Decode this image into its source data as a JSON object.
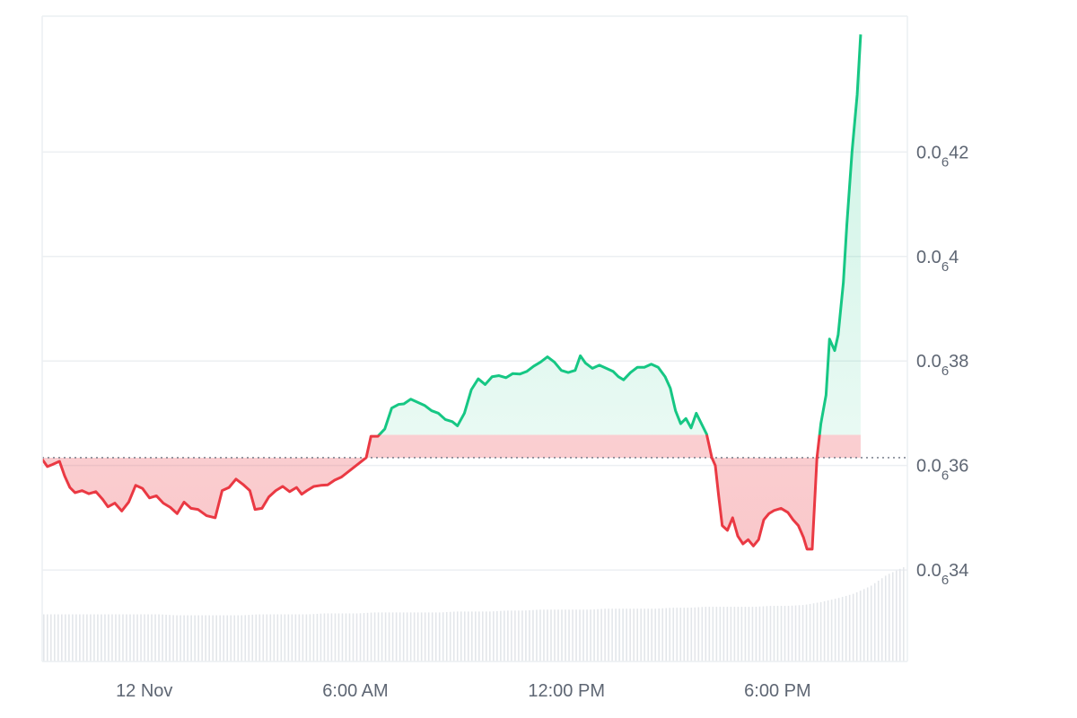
{
  "chart_data": {
    "type": "area",
    "baseline": 0.03635,
    "y_range": [
      0.03245,
      0.0448
    ],
    "y_ticks": [
      {
        "value": 0.0342,
        "prefix": "0.0",
        "sub": "6",
        "suffix": "34"
      },
      {
        "value": 0.0362,
        "prefix": "0.0",
        "sub": "6",
        "suffix": "36"
      },
      {
        "value": 0.0382,
        "prefix": "0.0",
        "sub": "6",
        "suffix": "38"
      },
      {
        "value": 0.0402,
        "prefix": "0.0",
        "sub": "6",
        "suffix": "4"
      },
      {
        "value": 0.0422,
        "prefix": "0.0",
        "sub": "6",
        "suffix": "42"
      }
    ],
    "x_ticks": [
      {
        "t": 0.118,
        "label": "12 Nov"
      },
      {
        "t": 0.362,
        "label": "6:00 AM"
      },
      {
        "t": 0.606,
        "label": "12:00 PM"
      },
      {
        "t": 0.85,
        "label": "6:00 PM"
      }
    ],
    "series": [
      {
        "points": [
          [
            0,
            0.03632
          ],
          [
            0.006,
            0.03618
          ],
          [
            0.012,
            0.03622
          ],
          [
            0.02,
            0.03628
          ],
          [
            0.026,
            0.036
          ],
          [
            0.032,
            0.03578
          ],
          [
            0.038,
            0.03568
          ],
          [
            0.046,
            0.03572
          ],
          [
            0.054,
            0.03566
          ],
          [
            0.062,
            0.0357
          ],
          [
            0.07,
            0.03555
          ],
          [
            0.076,
            0.03541
          ],
          [
            0.084,
            0.03548
          ],
          [
            0.092,
            0.03533
          ],
          [
            0.1,
            0.0355
          ],
          [
            0.108,
            0.03582
          ],
          [
            0.116,
            0.03576
          ],
          [
            0.124,
            0.03558
          ],
          [
            0.132,
            0.03562
          ],
          [
            0.14,
            0.03548
          ],
          [
            0.148,
            0.0354
          ],
          [
            0.156,
            0.03528
          ],
          [
            0.164,
            0.0355
          ],
          [
            0.172,
            0.03538
          ],
          [
            0.18,
            0.03536
          ],
          [
            0.19,
            0.03524
          ],
          [
            0.2,
            0.0352
          ],
          [
            0.208,
            0.03572
          ],
          [
            0.216,
            0.03578
          ],
          [
            0.224,
            0.03594
          ],
          [
            0.232,
            0.03584
          ],
          [
            0.24,
            0.03572
          ],
          [
            0.246,
            0.03536
          ],
          [
            0.254,
            0.03538
          ],
          [
            0.262,
            0.0356
          ],
          [
            0.27,
            0.03572
          ],
          [
            0.278,
            0.0358
          ],
          [
            0.286,
            0.0357
          ],
          [
            0.294,
            0.03578
          ],
          [
            0.3,
            0.03565
          ],
          [
            0.306,
            0.03572
          ],
          [
            0.314,
            0.0358
          ],
          [
            0.322,
            0.03582
          ],
          [
            0.33,
            0.03583
          ],
          [
            0.338,
            0.03592
          ],
          [
            0.346,
            0.03598
          ],
          [
            0.3745,
            0.03635
          ],
          [
            0.38,
            0.03676
          ],
          [
            0.388,
            0.03676
          ],
          [
            0.396,
            0.0369
          ],
          [
            0.404,
            0.0373
          ],
          [
            0.412,
            0.03737
          ],
          [
            0.418,
            0.03738
          ],
          [
            0.426,
            0.03747
          ],
          [
            0.434,
            0.03741
          ],
          [
            0.442,
            0.03735
          ],
          [
            0.45,
            0.03725
          ],
          [
            0.458,
            0.0372
          ],
          [
            0.466,
            0.03708
          ],
          [
            0.474,
            0.03704
          ],
          [
            0.48,
            0.03696
          ],
          [
            0.488,
            0.0372
          ],
          [
            0.496,
            0.03765
          ],
          [
            0.504,
            0.03786
          ],
          [
            0.512,
            0.03775
          ],
          [
            0.52,
            0.0379
          ],
          [
            0.528,
            0.03792
          ],
          [
            0.536,
            0.03788
          ],
          [
            0.544,
            0.03796
          ],
          [
            0.552,
            0.03795
          ],
          [
            0.56,
            0.038
          ],
          [
            0.568,
            0.0381
          ],
          [
            0.576,
            0.03818
          ],
          [
            0.584,
            0.03828
          ],
          [
            0.592,
            0.03818
          ],
          [
            0.6,
            0.03802
          ],
          [
            0.608,
            0.03798
          ],
          [
            0.616,
            0.03802
          ],
          [
            0.622,
            0.0383
          ],
          [
            0.628,
            0.03816
          ],
          [
            0.636,
            0.03806
          ],
          [
            0.644,
            0.03812
          ],
          [
            0.652,
            0.03806
          ],
          [
            0.66,
            0.038
          ],
          [
            0.666,
            0.0379
          ],
          [
            0.672,
            0.03784
          ],
          [
            0.68,
            0.03798
          ],
          [
            0.688,
            0.03808
          ],
          [
            0.696,
            0.03808
          ],
          [
            0.704,
            0.03814
          ],
          [
            0.712,
            0.03808
          ],
          [
            0.72,
            0.0379
          ],
          [
            0.726,
            0.03768
          ],
          [
            0.732,
            0.03725
          ],
          [
            0.738,
            0.037
          ],
          [
            0.744,
            0.0371
          ],
          [
            0.75,
            0.03692
          ],
          [
            0.756,
            0.0372
          ],
          [
            0.762,
            0.037
          ],
          [
            0.768,
            0.0368
          ],
          [
            0.774,
            0.03635
          ],
          [
            0.778,
            0.0362
          ],
          [
            0.782,
            0.0356
          ],
          [
            0.786,
            0.03505
          ],
          [
            0.792,
            0.03496
          ],
          [
            0.798,
            0.0352
          ],
          [
            0.804,
            0.03485
          ],
          [
            0.81,
            0.0347
          ],
          [
            0.816,
            0.03478
          ],
          [
            0.822,
            0.03466
          ],
          [
            0.828,
            0.03478
          ],
          [
            0.834,
            0.03516
          ],
          [
            0.84,
            0.03528
          ],
          [
            0.846,
            0.03534
          ],
          [
            0.854,
            0.03538
          ],
          [
            0.862,
            0.0353
          ],
          [
            0.868,
            0.03516
          ],
          [
            0.874,
            0.03505
          ],
          [
            0.88,
            0.03482
          ],
          [
            0.884,
            0.0346
          ],
          [
            0.89,
            0.0346
          ],
          [
            0.8955,
            0.03635
          ],
          [
            0.9,
            0.037
          ],
          [
            0.906,
            0.03755
          ],
          [
            0.91,
            0.03862
          ],
          [
            0.916,
            0.0384
          ],
          [
            0.92,
            0.0387
          ],
          [
            0.926,
            0.0397
          ],
          [
            0.93,
            0.0408
          ],
          [
            0.936,
            0.0422
          ],
          [
            0.942,
            0.0433
          ],
          [
            0.946,
            0.04445
          ]
        ],
        "up_color": "#16c784",
        "down_color": "#ea3943"
      }
    ],
    "volume": {
      "unit_note": "",
      "values": [
        50,
        50,
        50,
        50,
        50,
        50,
        50,
        50,
        49,
        49,
        49,
        49,
        49,
        50,
        50,
        50,
        50,
        51,
        51,
        51,
        52,
        52,
        52,
        52,
        52,
        53,
        53,
        53,
        54,
        54,
        55,
        55,
        55,
        55,
        56,
        56,
        56,
        56,
        57,
        57,
        58,
        58,
        58,
        58,
        59,
        59,
        60,
        63,
        67,
        72,
        80,
        92,
        100
      ]
    }
  }
}
